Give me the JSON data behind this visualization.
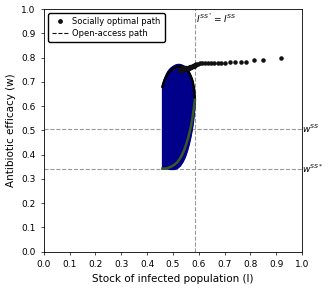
{
  "xlabel": "Stock of infected population (I)",
  "ylabel": "Antibiotic efficacy (w)",
  "xlim": [
    0,
    1
  ],
  "ylim": [
    0,
    1
  ],
  "xticks": [
    0,
    0.1,
    0.2,
    0.3,
    0.4,
    0.5,
    0.6,
    0.7,
    0.8,
    0.9,
    1
  ],
  "yticks": [
    0,
    0.1,
    0.2,
    0.3,
    0.4,
    0.5,
    0.6,
    0.7,
    0.8,
    0.9,
    1
  ],
  "hline_wSS": 0.505,
  "hline_wSS_star": 0.342,
  "vline_ISS": 0.585,
  "vline_label": "$I^{SS^*}=I^{SS}$",
  "wSS_label": "$w^{SS}$",
  "wSS_star_label": "$w^{SS*}$",
  "background_color": "#ffffff",
  "dashed_color": "#999999",
  "socially_optimal_color": "#00008B",
  "open_access_color": "#3a5a20",
  "dot_color": "#111111",
  "socially_optimal_label": "Socially optimal path",
  "open_access_label": "Open-access path",
  "opt_up_I": [
    0.46,
    0.462,
    0.465,
    0.468,
    0.472,
    0.476,
    0.48,
    0.485,
    0.49,
    0.495,
    0.5,
    0.505,
    0.51,
    0.515,
    0.52,
    0.524,
    0.527,
    0.53,
    0.533,
    0.536,
    0.54,
    0.543,
    0.546,
    0.549,
    0.552,
    0.555,
    0.558,
    0.561,
    0.564,
    0.567,
    0.57,
    0.573,
    0.576,
    0.578,
    0.58,
    0.582,
    0.583,
    0.584,
    0.585
  ],
  "opt_up_w": [
    0.68,
    0.69,
    0.7,
    0.71,
    0.72,
    0.73,
    0.738,
    0.746,
    0.752,
    0.757,
    0.761,
    0.764,
    0.767,
    0.769,
    0.77,
    0.77,
    0.77,
    0.769,
    0.768,
    0.767,
    0.765,
    0.763,
    0.761,
    0.758,
    0.755,
    0.751,
    0.747,
    0.742,
    0.736,
    0.729,
    0.721,
    0.712,
    0.701,
    0.69,
    0.678,
    0.664,
    0.65,
    0.633,
    0.615
  ],
  "opt_down_I": [
    0.585,
    0.584,
    0.582,
    0.58,
    0.577,
    0.573,
    0.568,
    0.562,
    0.555,
    0.547,
    0.538,
    0.528,
    0.517,
    0.505,
    0.493,
    0.48,
    0.468,
    0.46
  ],
  "opt_down_w": [
    0.615,
    0.595,
    0.573,
    0.55,
    0.525,
    0.498,
    0.47,
    0.442,
    0.415,
    0.39,
    0.37,
    0.354,
    0.344,
    0.34,
    0.34,
    0.342,
    0.343,
    0.342
  ],
  "oa_up_I": [
    0.46,
    0.462,
    0.465,
    0.468,
    0.472,
    0.476,
    0.48,
    0.485,
    0.49,
    0.495,
    0.5,
    0.505,
    0.51,
    0.515,
    0.52,
    0.524,
    0.527,
    0.53,
    0.533,
    0.536,
    0.54,
    0.543,
    0.546,
    0.549,
    0.552,
    0.555,
    0.558,
    0.561,
    0.564,
    0.567,
    0.57,
    0.573,
    0.576,
    0.578,
    0.58,
    0.582,
    0.583,
    0.584,
    0.585
  ],
  "oa_up_w": [
    0.68,
    0.688,
    0.697,
    0.706,
    0.715,
    0.724,
    0.732,
    0.739,
    0.745,
    0.75,
    0.754,
    0.757,
    0.76,
    0.762,
    0.763,
    0.764,
    0.764,
    0.764,
    0.763,
    0.762,
    0.76,
    0.758,
    0.756,
    0.753,
    0.75,
    0.747,
    0.743,
    0.738,
    0.733,
    0.727,
    0.72,
    0.712,
    0.703,
    0.693,
    0.682,
    0.67,
    0.657,
    0.642,
    0.626
  ],
  "oa_down_I": [
    0.585,
    0.583,
    0.581,
    0.578,
    0.575,
    0.571,
    0.566,
    0.56,
    0.553,
    0.545,
    0.536,
    0.526,
    0.515,
    0.503,
    0.491,
    0.479,
    0.468,
    0.46
  ],
  "oa_down_w": [
    0.626,
    0.608,
    0.589,
    0.568,
    0.546,
    0.522,
    0.498,
    0.472,
    0.447,
    0.422,
    0.4,
    0.381,
    0.366,
    0.356,
    0.349,
    0.344,
    0.342,
    0.342
  ],
  "dots_I": [
    0.585,
    0.59,
    0.597,
    0.605,
    0.614,
    0.624,
    0.635,
    0.647,
    0.66,
    0.673,
    0.687,
    0.701,
    0.72,
    0.74,
    0.762,
    0.785,
    0.815,
    0.85,
    0.92
  ],
  "dots_w": [
    0.768,
    0.772,
    0.775,
    0.776,
    0.777,
    0.777,
    0.777,
    0.778,
    0.778,
    0.779,
    0.779,
    0.779,
    0.78,
    0.78,
    0.78,
    0.78,
    0.79,
    0.79,
    0.8
  ],
  "sodots_I": [
    0.585,
    0.581,
    0.577,
    0.572,
    0.567,
    0.562,
    0.557,
    0.552,
    0.548,
    0.544,
    0.541,
    0.538,
    0.536,
    0.534,
    0.533,
    0.532,
    0.531,
    0.53,
    0.529
  ],
  "sodots_w": [
    0.768,
    0.766,
    0.764,
    0.762,
    0.76,
    0.758,
    0.757,
    0.756,
    0.756,
    0.755,
    0.755,
    0.754,
    0.754,
    0.753,
    0.752,
    0.751,
    0.75,
    0.749,
    0.748
  ]
}
